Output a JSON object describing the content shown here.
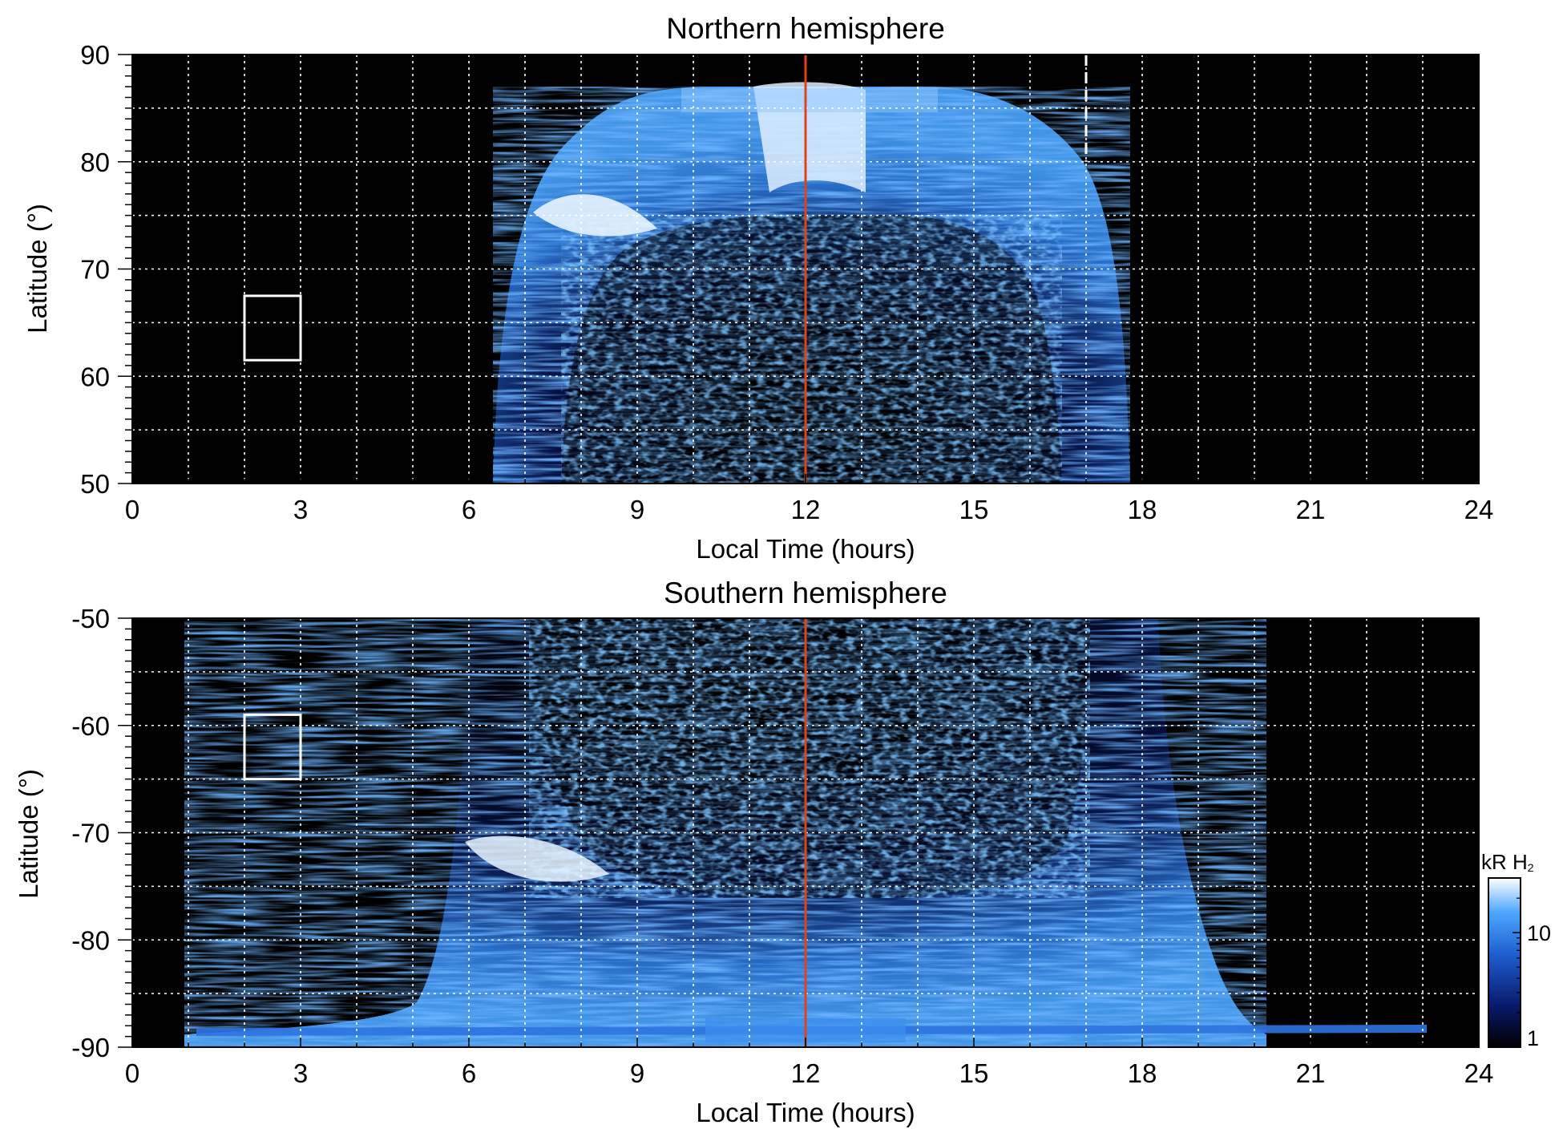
{
  "chart_data": [
    {
      "type": "heatmap",
      "title": "Northern hemisphere",
      "xlabel": "Local Time (hours)",
      "ylabel": "Latitude (°)",
      "xlim": [
        0,
        24
      ],
      "ylim": [
        50,
        90
      ],
      "xticks": [
        0,
        3,
        6,
        9,
        12,
        15,
        18,
        21,
        24
      ],
      "yticks": [
        50,
        60,
        70,
        80,
        90
      ],
      "grid": true,
      "noon_line_x": 12,
      "dashed_marker_x": 17,
      "box": {
        "x": [
          2,
          3
        ],
        "y": [
          61.5,
          67.5
        ]
      },
      "emission_lt_range": [
        6.5,
        18
      ],
      "bright_zone_lat": [
        75,
        87
      ],
      "colors": {
        "line": "#e0421a",
        "box": "#ffffff",
        "grid": "#ffffff",
        "background": "#000000"
      }
    },
    {
      "type": "heatmap",
      "title": "Southern hemisphere",
      "xlabel": "Local Time (hours)",
      "ylabel": "Latitude (°)",
      "xlim": [
        0,
        24
      ],
      "ylim": [
        -90,
        -50
      ],
      "xticks": [
        0,
        3,
        6,
        9,
        12,
        15,
        18,
        21,
        24
      ],
      "yticks": [
        -50,
        -60,
        -70,
        -80,
        -90
      ],
      "grid": true,
      "noon_line_x": 12,
      "box": {
        "x": [
          2,
          3
        ],
        "y": [
          -65,
          -59
        ]
      },
      "emission_lt_range": [
        6,
        18.5
      ],
      "colors": {
        "line": "#e0421a",
        "box": "#ffffff",
        "grid": "#ffffff",
        "background": "#000000"
      }
    }
  ],
  "colorbar": {
    "label": "kR H",
    "label_sub": "2",
    "ticks": [
      {
        "value": 10,
        "label": "10"
      },
      {
        "value": 1,
        "label": "1"
      }
    ],
    "range": [
      1,
      30
    ],
    "scale": "log",
    "colors": [
      "#000000",
      "#0a1a6e",
      "#1e5fd0",
      "#4ea8ff",
      "#ffffff"
    ]
  }
}
